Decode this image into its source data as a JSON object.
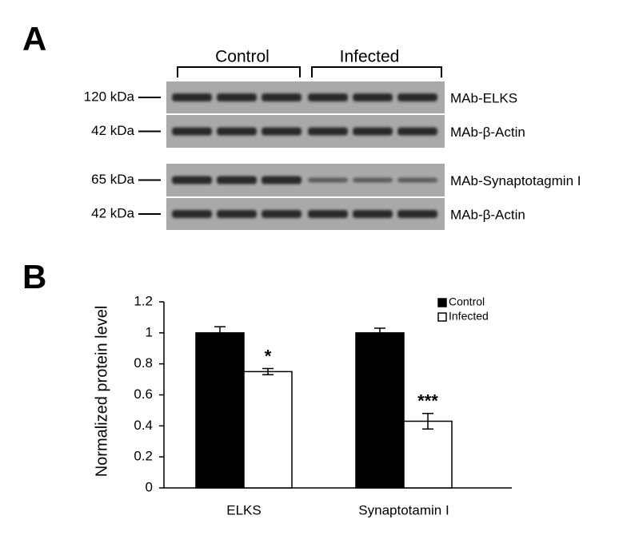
{
  "panel_labels": [
    "A",
    "B"
  ],
  "blot": {
    "groups": [
      "Control",
      "Infected"
    ],
    "rows": [
      {
        "size": "120 kDa",
        "antibody": "MAb-ELKS"
      },
      {
        "size": "42 kDa",
        "antibody": "MAb-β-Actin"
      },
      {
        "size": "65 kDa",
        "antibody": "MAb-Synaptotagmin I"
      },
      {
        "size": "42 kDa",
        "antibody": "MAb-β-Actin"
      }
    ]
  },
  "chart_data": {
    "type": "bar",
    "y_label": "Normalized protein level",
    "categories": [
      "ELKS",
      "Synaptotamin I"
    ],
    "series": [
      {
        "name": "Control",
        "color": "#000000",
        "values": [
          1,
          1
        ],
        "errors": [
          0.04,
          0.03
        ]
      },
      {
        "name": "Infected",
        "color": "#ffffff",
        "values": [
          0.75,
          0.43
        ],
        "errors": [
          0.02,
          0.05
        ],
        "annotations": [
          "*",
          "***"
        ]
      }
    ],
    "ylim": [
      0,
      1.2
    ],
    "yticks": [
      0,
      0.2,
      0.4,
      0.6,
      0.8,
      1,
      1.2
    ],
    "legend": "top-right"
  }
}
